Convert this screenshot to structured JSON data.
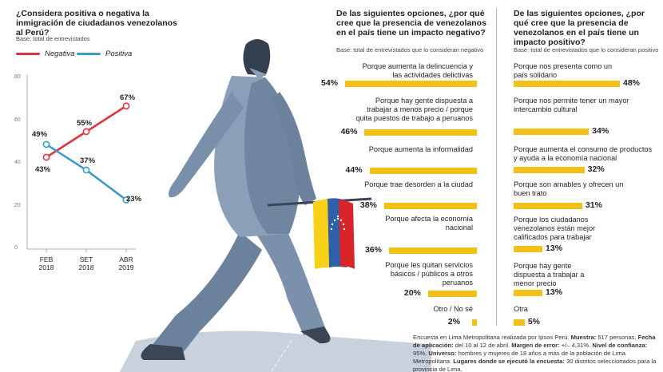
{
  "chart_data": [
    {
      "type": "line",
      "title": "¿Considera positiva o negativa la inmigración de ciudadanos venezolanos al Perú?",
      "subtitle": "Base: total de entrevistados",
      "categories": [
        "FEB 2018",
        "SET 2018",
        "ABR 2019"
      ],
      "ylim": [
        0,
        80
      ],
      "yticks": [
        "0",
        "20",
        "40",
        "60",
        "80"
      ],
      "series": [
        {
          "name": "Negativa",
          "color": "#d9363e",
          "values": [
            43,
            55,
            67
          ],
          "labels": [
            "43%",
            "55%",
            "67%"
          ]
        },
        {
          "name": "Positiva",
          "color": "#3d9cc6",
          "values": [
            49,
            37,
            23
          ],
          "labels": [
            "49%",
            "37%",
            "23%"
          ]
        }
      ],
      "legend": "top-left",
      "grid": false
    },
    {
      "type": "bar",
      "title": "De las siguientes opciones, ¿por qué cree que la presencia de venezolanos en el país tiene un impacto negativo?",
      "subtitle": "Base: total de entrevistados que lo consideran negativo",
      "color": "#f2c117",
      "categories": [
        "Porque aumenta la delincuencia y las actividades delictivas",
        "Porque hay gente dispuesta a trabajar a menos precio / porque quita puestos de trabajo a peruanos",
        "Porque aumenta la informalidad",
        "Porque trae desorden a la ciudad",
        "Porque afecta la economía nacional",
        "Porque les quitan servicios básicos / públicos a otros peruanos",
        "Otro / No sé"
      ],
      "values": [
        54,
        46,
        44,
        38,
        36,
        20,
        2
      ],
      "labels": [
        "54%",
        "46%",
        "44%",
        "38%",
        "36%",
        "20%",
        "2%"
      ]
    },
    {
      "type": "bar",
      "title": "De las siguientes opciones, ¿por qué cree que la presencia de venezolanos en el país tiene un impacto positivo?",
      "subtitle": "Base: total de entrevistados que lo consideran positivo",
      "color": "#f2c117",
      "categories": [
        "Porque nos presenta como un país solidario",
        "Porque nos permite tener un mayor intercambio cultural",
        "Porque aumenta el consumo de productos y ayuda a la economía nacional",
        "Porque son amables y ofrecen un buen trato",
        "Porque los ciudadanos venezolanos están mejor calificados para trabajar",
        "Porque hay gente dispuesta a trabajar a menor precio",
        "Otra"
      ],
      "values": [
        48,
        34,
        32,
        31,
        13,
        13,
        5
      ],
      "labels": [
        "48%",
        "34%",
        "32%",
        "31%",
        "13%",
        "13%",
        "5%"
      ]
    }
  ],
  "footnote": {
    "p1": "Encuesta en Lima Metropolitana realizada por Ipsos Perú. ",
    "k1": "Muestra:",
    "v1": " 517 personas. ",
    "k2": "Fecha de aplicación:",
    "v2": " del 10 al 12 de abril. ",
    "k3": "Margen de error:",
    "v3": " +/– 4,31%. ",
    "k4": "Nivel de confianza:",
    "v4": " 95%. ",
    "k5": "Universo:",
    "v5": " hombres y mujeres de 18 años a más de la población de Lima Metropolitana. ",
    "k6": "Lugares donde se ejecutó la encuesta:",
    "v6": " 30 distritos seleccionados para la provincia de Lima."
  },
  "illustration": {
    "subject": "walking-man-with-venezuelan-flag",
    "flag_colors": [
      "#f6d118",
      "#2e5fa8",
      "#d9252a"
    ]
  }
}
